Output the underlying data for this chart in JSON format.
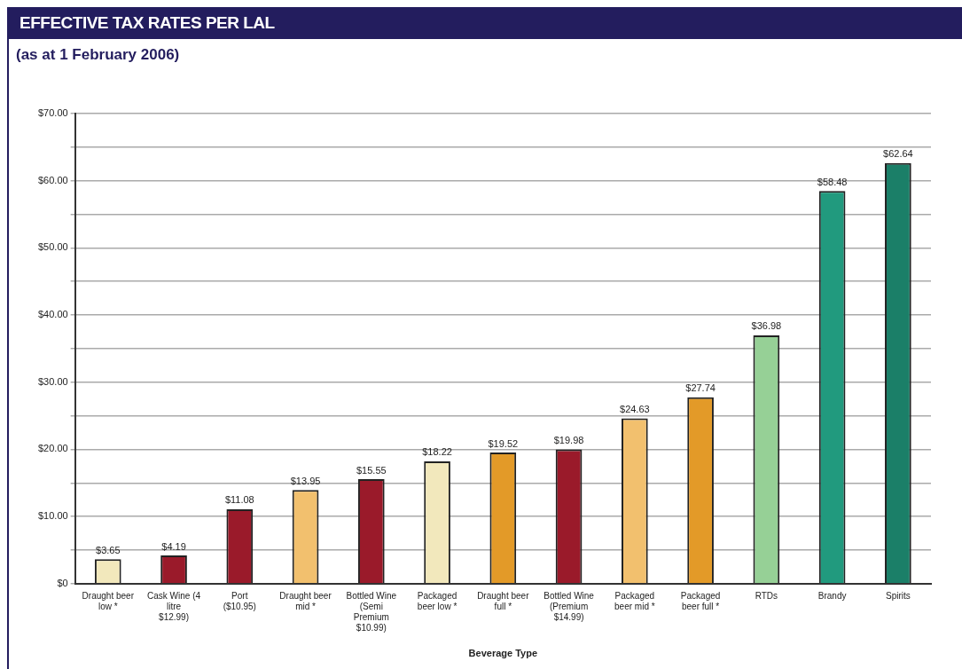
{
  "chart_data": {
    "type": "bar",
    "title": "EFFECTIVE TAX RATES PER LAL",
    "subtitle": "(as at 1 February 2006)",
    "xlabel": "Beverage Type",
    "categories": [
      "Draught beer low *",
      "Cask Wine (4 litre $12.99)",
      "Port ($10.95)",
      "Draught beer mid *",
      "Bottled Wine (Semi Premium $10.99)",
      "Packaged beer low *",
      "Draught beer full *",
      "Bottled Wine (Premium $14.99)",
      "Packaged beer mid *",
      "Packaged beer full *",
      "RTDs",
      "Brandy",
      "Spirits"
    ],
    "values": [
      3.65,
      4.19,
      11.08,
      13.95,
      15.55,
      18.22,
      19.52,
      19.98,
      24.63,
      27.74,
      36.98,
      58.48,
      62.64
    ],
    "value_labels": [
      "$3.65",
      "$4.19",
      "$11.08",
      "$13.95",
      "$15.55",
      "$18.22",
      "$19.52",
      "$19.98",
      "$24.63",
      "$27.74",
      "$36.98",
      "$58.48",
      "$62.64"
    ],
    "colors": [
      "#f2e8bc",
      "#9a1a2a",
      "#9a1a2a",
      "#f2c06e",
      "#9a1a2a",
      "#f2e8bc",
      "#e39a28",
      "#9a1a2a",
      "#f2c06e",
      "#e39a28",
      "#96d096",
      "#219a7e",
      "#1b7f68"
    ],
    "ylim": [
      0,
      70
    ],
    "yticks": [
      {
        "value": 0,
        "label": "$0"
      },
      {
        "value": 5,
        "label": null
      },
      {
        "value": 10,
        "label": "$10.00"
      },
      {
        "value": 15,
        "label": null
      },
      {
        "value": 20,
        "label": "$20.00"
      },
      {
        "value": 25,
        "label": null
      },
      {
        "value": 30,
        "label": "$30.00"
      },
      {
        "value": 35,
        "label": null
      },
      {
        "value": 40,
        "label": "$40.00"
      },
      {
        "value": 45,
        "label": null
      },
      {
        "value": 50,
        "label": "$50.00"
      },
      {
        "value": 55,
        "label": null
      },
      {
        "value": 60,
        "label": "$60.00"
      },
      {
        "value": 65,
        "label": null
      },
      {
        "value": 70,
        "label": "$70.00"
      }
    ],
    "grid": "y",
    "legend": false
  }
}
